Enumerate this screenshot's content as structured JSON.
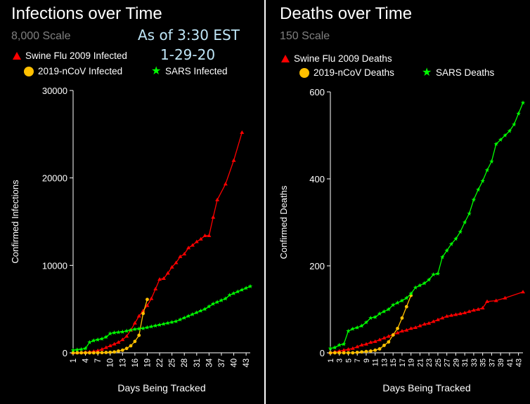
{
  "chart_data": [
    {
      "type": "line",
      "title": "Infections over Time",
      "subtitle": "8,000 Scale",
      "annotation_time": "As of 3:30 EST",
      "annotation_date": "1-29-20",
      "xlabel": "Days Being Tracked",
      "ylabel": "Confirmed Infections",
      "ylim": [
        0,
        30000
      ],
      "yticks": [
        0,
        10000,
        20000,
        30000
      ],
      "ytick_labels": [
        "0",
        "10000",
        "20000",
        "30000"
      ],
      "xlim": [
        1,
        44
      ],
      "xticks": [
        1,
        4,
        7,
        10,
        13,
        16,
        19,
        22,
        25,
        28,
        31,
        34,
        37,
        40,
        43
      ],
      "xtick_labels": [
        "1",
        "4",
        "7",
        "10",
        "13",
        "16",
        "19",
        "22",
        "25",
        "28",
        "31",
        "34",
        "37",
        "40",
        "43"
      ],
      "series": [
        {
          "name": "Swine Flu 2009 Infected",
          "color": "#ff0000",
          "marker": "triangle",
          "x": [
            1,
            2,
            3,
            4,
            5,
            6,
            7,
            8,
            9,
            10,
            11,
            12,
            13,
            14,
            15,
            16,
            17,
            18,
            19,
            20,
            21,
            22,
            23,
            24,
            25,
            26,
            27,
            28,
            29,
            30,
            31,
            32,
            33,
            34,
            35,
            36,
            38,
            40,
            42
          ],
          "y": [
            0,
            20,
            40,
            60,
            100,
            160,
            250,
            400,
            600,
            800,
            1000,
            1200,
            1500,
            1900,
            2600,
            3400,
            4200,
            4800,
            5400,
            6200,
            7300,
            8400,
            8500,
            9100,
            9800,
            10300,
            11000,
            11300,
            12000,
            12300,
            12700,
            13000,
            13400,
            13400,
            15500,
            17500,
            19300,
            22000,
            25200
          ]
        },
        {
          "name": "2019-nCoV Infected",
          "color": "#ffc000",
          "marker": "circle",
          "x": [
            1,
            2,
            3,
            4,
            5,
            6,
            7,
            8,
            9,
            10,
            11,
            12,
            13,
            14,
            15,
            16,
            17,
            18,
            19
          ],
          "y": [
            0,
            0,
            0,
            0,
            0,
            0,
            10,
            20,
            40,
            60,
            100,
            200,
            300,
            500,
            800,
            1300,
            2000,
            4500,
            6100
          ]
        },
        {
          "name": "SARS Infected",
          "color": "#00ff00",
          "marker": "star",
          "x": [
            1,
            2,
            3,
            4,
            5,
            6,
            7,
            8,
            9,
            10,
            11,
            12,
            13,
            14,
            15,
            16,
            17,
            18,
            19,
            20,
            21,
            22,
            23,
            24,
            25,
            26,
            27,
            28,
            29,
            30,
            31,
            32,
            33,
            34,
            35,
            36,
            37,
            38,
            39,
            40,
            41,
            42,
            43,
            44
          ],
          "y": [
            300,
            350,
            400,
            500,
            1200,
            1400,
            1500,
            1600,
            1800,
            2200,
            2300,
            2350,
            2400,
            2500,
            2600,
            2700,
            2750,
            2800,
            2900,
            3000,
            3100,
            3200,
            3300,
            3400,
            3500,
            3600,
            3800,
            4000,
            4200,
            4400,
            4600,
            4800,
            5000,
            5300,
            5600,
            5800,
            6000,
            6200,
            6600,
            6800,
            7000,
            7200,
            7400,
            7600
          ]
        }
      ]
    },
    {
      "type": "line",
      "title": "Deaths over Time",
      "subtitle": "150 Scale",
      "xlabel": "Days Being Tracked",
      "ylabel": "Confirmed  Deaths",
      "ylim": [
        0,
        600
      ],
      "yticks": [
        0,
        200,
        400,
        600
      ],
      "ytick_labels": [
        "0",
        "200",
        "400",
        "600"
      ],
      "xlim": [
        1,
        44
      ],
      "xticks": [
        1,
        3,
        5,
        7,
        9,
        11,
        13,
        15,
        17,
        19,
        21,
        23,
        25,
        27,
        29,
        31,
        33,
        35,
        37,
        39,
        41,
        43
      ],
      "xtick_labels": [
        "1",
        "3",
        "5",
        "7",
        "9",
        "11",
        "13",
        "15",
        "17",
        "19",
        "21",
        "23",
        "25",
        "27",
        "29",
        "31",
        "33",
        "35",
        "37",
        "39",
        "41",
        "43"
      ],
      "series": [
        {
          "name": "Swine Flu 2009 Deaths",
          "color": "#ff0000",
          "marker": "triangle",
          "x": [
            1,
            2,
            3,
            4,
            5,
            6,
            7,
            8,
            9,
            10,
            11,
            12,
            13,
            14,
            15,
            16,
            17,
            18,
            19,
            20,
            21,
            22,
            23,
            24,
            25,
            26,
            27,
            28,
            29,
            30,
            31,
            32,
            33,
            34,
            35,
            36,
            38,
            40,
            44
          ],
          "y": [
            0,
            2,
            4,
            6,
            8,
            10,
            14,
            18,
            20,
            24,
            26,
            30,
            34,
            38,
            42,
            46,
            50,
            52,
            56,
            58,
            62,
            66,
            68,
            72,
            76,
            80,
            84,
            86,
            88,
            90,
            92,
            95,
            98,
            100,
            103,
            118,
            120,
            126,
            140
          ]
        },
        {
          "name": "2019-nCoV Deaths",
          "color": "#ffc000",
          "marker": "circle",
          "x": [
            1,
            2,
            3,
            4,
            5,
            6,
            7,
            8,
            9,
            10,
            11,
            12,
            13,
            14,
            15,
            16,
            17,
            18,
            19
          ],
          "y": [
            0,
            0,
            0,
            0,
            0,
            0,
            1,
            2,
            3,
            4,
            6,
            9,
            17,
            25,
            41,
            56,
            80,
            106,
            132
          ]
        },
        {
          "name": "SARS Deaths",
          "color": "#00ff00",
          "marker": "star",
          "x": [
            1,
            2,
            3,
            4,
            5,
            6,
            7,
            8,
            9,
            10,
            11,
            12,
            13,
            14,
            15,
            16,
            17,
            18,
            19,
            20,
            21,
            22,
            23,
            24,
            25,
            26,
            27,
            28,
            29,
            30,
            31,
            32,
            33,
            34,
            35,
            36,
            37,
            38,
            39,
            40,
            41,
            42,
            43,
            44
          ],
          "y": [
            10,
            12,
            18,
            20,
            50,
            55,
            58,
            62,
            70,
            80,
            82,
            90,
            95,
            100,
            110,
            115,
            120,
            126,
            136,
            150,
            155,
            160,
            168,
            180,
            182,
            220,
            235,
            250,
            262,
            278,
            300,
            320,
            352,
            375,
            395,
            420,
            440,
            480,
            490,
            500,
            510,
            525,
            550,
            575
          ]
        }
      ]
    }
  ]
}
